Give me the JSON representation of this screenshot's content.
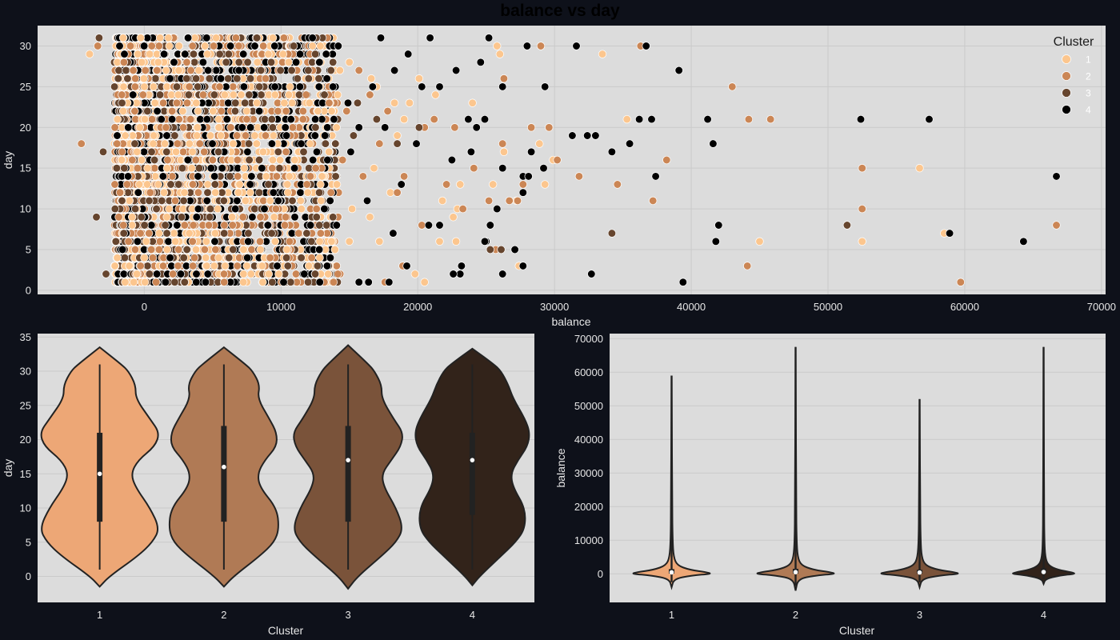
{
  "figure": {
    "title": "balance vs day",
    "background": "#0e111a",
    "axes_background": "#dcdcdc",
    "grid_color": "#cacaca"
  },
  "chart_data": [
    {
      "type": "scatter",
      "title": "balance vs day",
      "xlabel": "balance",
      "ylabel": "day",
      "xlim": [
        -7800,
        70300
      ],
      "ylim": [
        -0.5,
        32.5
      ],
      "xticks": [
        0,
        10000,
        20000,
        30000,
        40000,
        50000,
        60000,
        70000
      ],
      "yticks": [
        0,
        5,
        10,
        15,
        20,
        25,
        30
      ],
      "grid": true,
      "legend": {
        "title": "Cluster",
        "placement": "top-right",
        "entries": [
          {
            "label": "1",
            "color": "#fcc68e"
          },
          {
            "label": "2",
            "color": "#cb8655"
          },
          {
            "label": "3",
            "color": "#66452e"
          },
          {
            "label": "4",
            "color": "#000000"
          }
        ]
      },
      "series": [
        {
          "name": "1",
          "color": "#fcc68e",
          "points": [
            [
              -4000,
              29
            ],
            [
              29000,
              30
            ],
            [
              25800,
              30
            ],
            [
              33500,
              29
            ],
            [
              35300,
              21
            ],
            [
              56700,
              15
            ],
            [
              58500,
              7
            ],
            [
              45000,
              6
            ],
            [
              52500,
              6
            ],
            [
              27400,
              3
            ],
            [
              29900,
              16
            ],
            [
              29300,
              13
            ],
            [
              21600,
              6
            ],
            [
              22800,
              6
            ],
            [
              22600,
              9
            ],
            [
              18000,
              12
            ],
            [
              18300,
              23
            ],
            [
              19400,
              23
            ],
            [
              21300,
              24
            ],
            [
              16500,
              9
            ],
            [
              15000,
              6
            ],
            [
              17200,
              6
            ],
            [
              28900,
              18
            ],
            [
              26300,
              17
            ],
            [
              23100,
              13
            ],
            [
              22900,
              10
            ],
            [
              21800,
              11
            ],
            [
              25500,
              13
            ],
            [
              19800,
              2
            ],
            [
              17000,
              25
            ],
            [
              20100,
              26
            ],
            [
              16600,
              26
            ],
            [
              15000,
              28
            ],
            [
              18500,
              19
            ],
            [
              27200,
              11
            ],
            [
              26000,
              29
            ],
            [
              12700,
              22
            ],
            [
              14300,
              27
            ],
            [
              9500,
              9
            ],
            [
              11000,
              16
            ],
            [
              8800,
              4
            ],
            [
              12300,
              30
            ],
            [
              7800,
              2
            ],
            [
              10500,
              12
            ],
            [
              13000,
              14
            ],
            [
              24000,
              23
            ],
            [
              20500,
              1
            ],
            [
              15200,
              10
            ],
            [
              16800,
              15
            ],
            [
              19000,
              21
            ]
          ]
        },
        {
          "name": "2",
          "color": "#cb8655",
          "points": [
            [
              -4600,
              18
            ],
            [
              -3400,
              30
            ],
            [
              29000,
              30
            ],
            [
              36300,
              30
            ],
            [
              43000,
              25
            ],
            [
              44200,
              21
            ],
            [
              45800,
              21
            ],
            [
              38200,
              16
            ],
            [
              31800,
              14
            ],
            [
              34600,
              13
            ],
            [
              37200,
              11
            ],
            [
              52500,
              15
            ],
            [
              52500,
              10
            ],
            [
              51400,
              8
            ],
            [
              66700,
              8
            ],
            [
              59700,
              1
            ],
            [
              44100,
              3
            ],
            [
              26300,
              26
            ],
            [
              29600,
              20
            ],
            [
              30200,
              16
            ],
            [
              26700,
              11
            ],
            [
              27300,
              11
            ],
            [
              27700,
              13
            ],
            [
              25700,
              5
            ],
            [
              23300,
              10
            ],
            [
              22100,
              13
            ],
            [
              20500,
              20
            ],
            [
              18500,
              12
            ],
            [
              17800,
              22
            ],
            [
              16500,
              24
            ],
            [
              19000,
              14
            ],
            [
              15700,
              27
            ],
            [
              13500,
              25
            ],
            [
              20300,
              8
            ],
            [
              24100,
              15
            ],
            [
              25200,
              11
            ],
            [
              18900,
              3
            ],
            [
              17600,
              1
            ],
            [
              14500,
              16
            ],
            [
              12900,
              7
            ],
            [
              28300,
              20
            ],
            [
              26200,
              18
            ],
            [
              22700,
              20
            ],
            [
              21200,
              21
            ],
            [
              17200,
              18
            ],
            [
              16000,
              14
            ],
            [
              14800,
              22
            ],
            [
              12600,
              10
            ],
            [
              10700,
              19
            ],
            [
              9200,
              4
            ]
          ]
        },
        {
          "name": "3",
          "color": "#66452e",
          "points": [
            [
              -3500,
              9
            ],
            [
              -3300,
              31
            ],
            [
              -2800,
              2
            ],
            [
              -3000,
              17
            ],
            [
              34200,
              7
            ],
            [
              26100,
              5
            ],
            [
              25300,
              5
            ],
            [
              51400,
              8
            ],
            [
              20100,
              20
            ],
            [
              18500,
              18
            ],
            [
              17000,
              21
            ],
            [
              15600,
              23
            ],
            [
              14000,
              14
            ],
            [
              12600,
              9
            ],
            [
              13800,
              28
            ],
            [
              11200,
              26
            ],
            [
              10400,
              4
            ],
            [
              9800,
              17
            ],
            [
              12800,
              12
            ],
            [
              15300,
              19
            ]
          ]
        },
        {
          "name": "4",
          "color": "#000000",
          "points": [
            [
              31600,
              30
            ],
            [
              36700,
              30
            ],
            [
              39100,
              27
            ],
            [
              25200,
              31
            ],
            [
              17300,
              31
            ],
            [
              28000,
              30
            ],
            [
              20900,
              31
            ],
            [
              37100,
              21
            ],
            [
              36200,
              21
            ],
            [
              41200,
              21
            ],
            [
              52400,
              21
            ],
            [
              57400,
              21
            ],
            [
              32400,
              19
            ],
            [
              33000,
              19
            ],
            [
              31300,
              19
            ],
            [
              35500,
              18
            ],
            [
              41600,
              18
            ],
            [
              34200,
              17
            ],
            [
              37400,
              14
            ],
            [
              66700,
              14
            ],
            [
              42000,
              8
            ],
            [
              41800,
              6
            ],
            [
              58900,
              7
            ],
            [
              64300,
              6
            ],
            [
              39400,
              1
            ],
            [
              32700,
              2
            ],
            [
              27700,
              3
            ],
            [
              26200,
              2
            ],
            [
              23100,
              2
            ],
            [
              22600,
              2
            ],
            [
              23200,
              3
            ],
            [
              16400,
              1
            ],
            [
              15700,
              1
            ],
            [
              17900,
              1
            ],
            [
              19200,
              3
            ],
            [
              20800,
              8
            ],
            [
              21600,
              8
            ],
            [
              25000,
              6
            ],
            [
              27100,
              5
            ],
            [
              26200,
              15
            ],
            [
              25800,
              10
            ],
            [
              27700,
              12
            ],
            [
              27700,
              14
            ],
            [
              28100,
              14
            ],
            [
              29200,
              15
            ],
            [
              29300,
              25
            ],
            [
              26200,
              25
            ],
            [
              24600,
              28
            ],
            [
              24900,
              21
            ],
            [
              24300,
              20
            ],
            [
              23900,
              17
            ],
            [
              23700,
              21
            ],
            [
              22800,
              27
            ],
            [
              21600,
              25
            ],
            [
              20300,
              25
            ],
            [
              19300,
              29
            ],
            [
              18300,
              27
            ],
            [
              16700,
              25
            ],
            [
              15700,
              20
            ],
            [
              15100,
              17
            ],
            [
              14900,
              23
            ],
            [
              13800,
              25
            ],
            [
              13300,
              29
            ],
            [
              12300,
              31
            ],
            [
              11100,
              28
            ],
            [
              10400,
              19
            ],
            [
              9800,
              11
            ],
            [
              12800,
              5
            ],
            [
              11700,
              2
            ],
            [
              13400,
              16
            ],
            [
              17600,
              20
            ],
            [
              18800,
              13
            ],
            [
              16300,
              11
            ],
            [
              22500,
              16
            ],
            [
              23900,
              17
            ],
            [
              19900,
              18
            ],
            [
              28300,
              17
            ],
            [
              25300,
              8
            ],
            [
              24900,
              6
            ],
            [
              18200,
              7
            ]
          ]
        }
      ]
    },
    {
      "type": "violin",
      "xlabel": "Cluster",
      "ylabel": "day",
      "categories": [
        "1",
        "2",
        "3",
        "4"
      ],
      "ylim": [
        -3.8,
        35.5
      ],
      "yticks": [
        0,
        5,
        10,
        15,
        20,
        25,
        30,
        35
      ],
      "colors": [
        "#eda776",
        "#b07a55",
        "#7a533a",
        "#32231a"
      ],
      "grid": true,
      "series": [
        {
          "name": "1",
          "min": 1,
          "q1": 8,
          "median": 15,
          "q3": 21,
          "max": 31,
          "extent": [
            -1.5,
            33.5
          ]
        },
        {
          "name": "2",
          "min": 1,
          "q1": 8,
          "median": 16,
          "q3": 22,
          "max": 31,
          "extent": [
            -1.5,
            33.5
          ]
        },
        {
          "name": "3",
          "min": 1,
          "q1": 8,
          "median": 17,
          "q3": 22,
          "max": 31,
          "extent": [
            -1.8,
            33.8
          ]
        },
        {
          "name": "4",
          "min": 1,
          "q1": 9,
          "median": 17,
          "q3": 21,
          "max": 31,
          "extent": [
            -1.3,
            33.3
          ]
        }
      ],
      "density_profile_y": [
        -1.5,
        0,
        3,
        5,
        7,
        10,
        13,
        15,
        17,
        19,
        21,
        23,
        26,
        28,
        30,
        31,
        33.5
      ],
      "density_profile_halfwidth": [
        0,
        0.08,
        0.3,
        0.42,
        0.46,
        0.42,
        0.3,
        0.28,
        0.34,
        0.44,
        0.46,
        0.4,
        0.28,
        0.28,
        0.24,
        0.18,
        0
      ]
    },
    {
      "type": "violin",
      "xlabel": "Cluster",
      "ylabel": "balance",
      "categories": [
        "1",
        "2",
        "3",
        "4"
      ],
      "ylim": [
        -8500,
        71500
      ],
      "yticks": [
        0,
        10000,
        20000,
        30000,
        40000,
        50000,
        60000,
        70000
      ],
      "colors": [
        "#eda776",
        "#b07a55",
        "#7a533a",
        "#32231a"
      ],
      "grid": true,
      "series": [
        {
          "name": "1",
          "median": 450,
          "q1": 80,
          "q3": 1400,
          "extent": [
            -4000,
            59000
          ]
        },
        {
          "name": "2",
          "median": 500,
          "q1": 80,
          "q3": 1500,
          "extent": [
            -5000,
            67500
          ]
        },
        {
          "name": "3",
          "median": 400,
          "q1": 60,
          "q3": 1200,
          "extent": [
            -4000,
            52000
          ]
        },
        {
          "name": "4",
          "median": 550,
          "q1": 100,
          "q3": 1700,
          "extent": [
            -3000,
            67500
          ]
        }
      ]
    }
  ]
}
